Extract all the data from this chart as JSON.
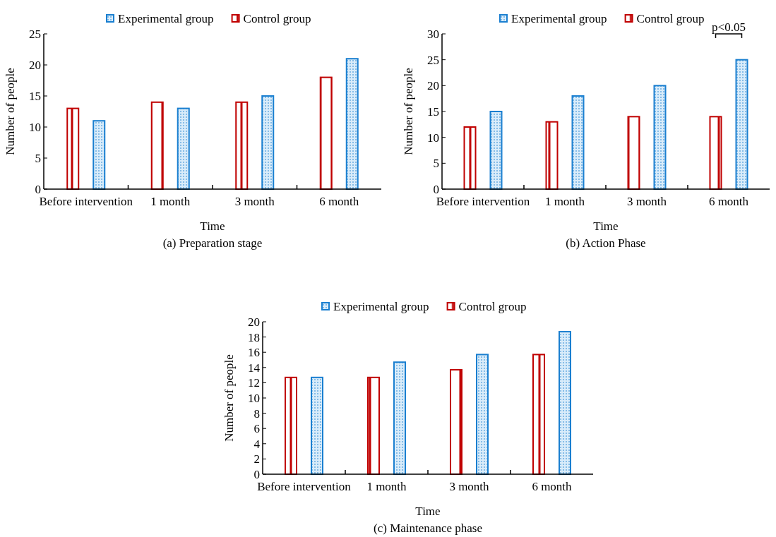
{
  "chart_data": [
    {
      "type": "bar",
      "categories": [
        "Before intervention",
        "1 month",
        "3 month",
        "6 month"
      ],
      "xlabel": "Time",
      "ylabel": "Number of people",
      "ylim": [
        0,
        25
      ],
      "yticks": [
        0,
        5,
        10,
        15,
        20,
        25
      ],
      "legend": "top",
      "grid": false,
      "series": [
        {
          "name": "Experimental group",
          "color": "#1a7fd0",
          "values": [
            11,
            13,
            15,
            21
          ]
        },
        {
          "name": "Control group",
          "color": "#c00000",
          "values": [
            13,
            14,
            14,
            18
          ]
        }
      ],
      "annotations": [
        "(a) Preparation stage"
      ]
    },
    {
      "type": "bar",
      "categories": [
        "Before intervention",
        "1 month",
        "3 month",
        "6 month"
      ],
      "xlabel": "Time",
      "ylabel": "Number of people",
      "ylim": [
        0,
        30
      ],
      "yticks": [
        0,
        5,
        10,
        15,
        20,
        25,
        30
      ],
      "legend": "top",
      "grid": false,
      "series": [
        {
          "name": "Experimental group",
          "color": "#1a7fd0",
          "values": [
            15,
            18,
            20,
            25
          ]
        },
        {
          "name": "Control group",
          "color": "#c00000",
          "values": [
            12,
            13,
            14,
            14
          ]
        }
      ],
      "annotations": [
        "p<0.05",
        "(b) Action Phase"
      ]
    },
    {
      "type": "bar",
      "categories": [
        "Before intervention",
        "1 month",
        "3 month",
        "6 month"
      ],
      "xlabel": "Time",
      "ylabel": "Number of people",
      "ylim": [
        0,
        20
      ],
      "yticks": [
        0,
        2,
        4,
        6,
        8,
        10,
        12,
        14,
        16,
        18,
        20
      ],
      "legend": "top",
      "grid": false,
      "series": [
        {
          "name": "Experimental group",
          "color": "#1a7fd0",
          "values": [
            12.7,
            14.7,
            15.7,
            18.7
          ]
        },
        {
          "name": "Control group",
          "color": "#c00000",
          "values": [
            12.7,
            12.7,
            13.7,
            15.7
          ]
        }
      ],
      "annotations": [
        "(c) Maintenance phase"
      ]
    }
  ]
}
